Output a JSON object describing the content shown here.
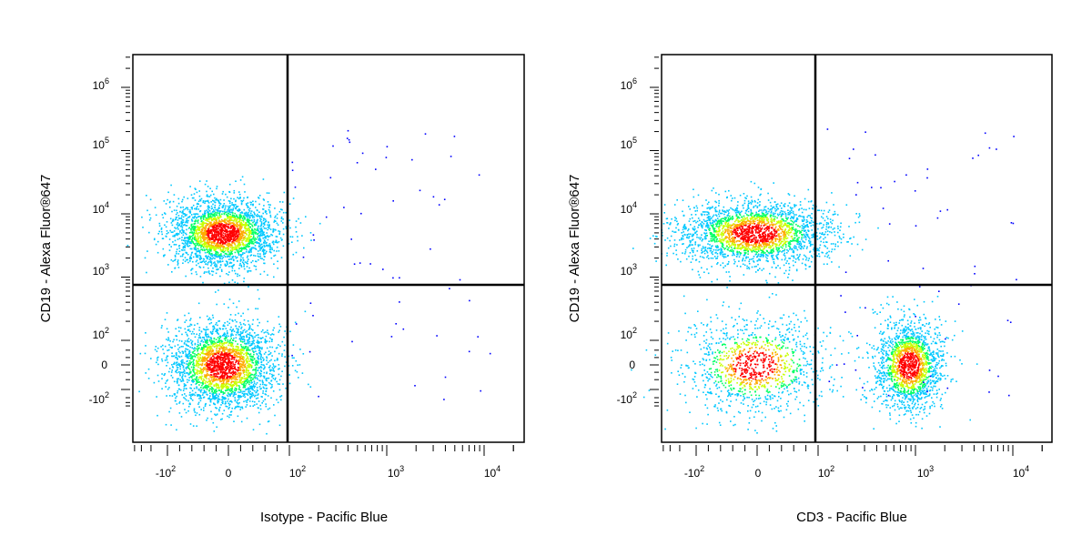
{
  "chart_data": [
    {
      "type": "scatter",
      "xlabel": "Isotype - Pacific Blue",
      "ylabel": "CD19 - Alexa Fluor®647",
      "x_scale": "biexponential",
      "y_scale": "biexponential",
      "xlim": [
        -400,
        20000
      ],
      "ylim": [
        -400,
        1600000
      ],
      "x_ticks": [
        "-10^2",
        "0",
        "10^2",
        "10^3",
        "10^4"
      ],
      "y_ticks": [
        "10^6",
        "10^5",
        "10^4",
        "10^3",
        "10^2",
        "0",
        "-10^2"
      ],
      "gate": {
        "x": 100,
        "y": 550
      },
      "grid": false,
      "populations": [
        {
          "name": "",
          "x_center": -10,
          "y_center": 5000,
          "x_spread": 60,
          "y_spread": 4500,
          "weight": 0.5
        },
        {
          "name": "",
          "x_center": -10,
          "y_center": 0,
          "x_spread": 60,
          "y_spread": 110,
          "weight": 0.5
        }
      ]
    },
    {
      "type": "scatter",
      "xlabel": "CD3 - Pacific Blue",
      "ylabel": "CD19 - Alexa Fluor®647",
      "x_scale": "biexponential",
      "y_scale": "biexponential",
      "xlim": [
        -400,
        20000
      ],
      "ylim": [
        -400,
        1600000
      ],
      "x_ticks": [
        "-10^2",
        "0",
        "10^2",
        "10^3",
        "10^4"
      ],
      "y_ticks": [
        "10^6",
        "10^5",
        "10^4",
        "10^3",
        "10^2",
        "0",
        "-10^2"
      ],
      "gate": {
        "x": 100,
        "y": 550
      },
      "grid": false,
      "populations": [
        {
          "name": "",
          "x_center": -5,
          "y_center": 5000,
          "x_spread": 90,
          "y_spread": 4000,
          "weight": 0.45
        },
        {
          "name": "",
          "x_center": -5,
          "y_center": 0,
          "x_spread": 85,
          "y_spread": 120,
          "weight": 0.22
        },
        {
          "name": "",
          "x_center": 850,
          "y_center": 0,
          "x_spread": 450,
          "y_spread": 110,
          "weight": 0.33
        }
      ]
    }
  ]
}
